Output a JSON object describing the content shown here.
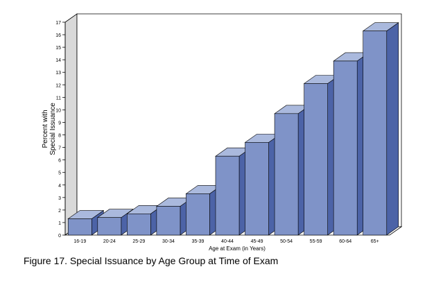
{
  "caption": "Figure 17. Special Issuance by Age Group at Time of Exam",
  "chart_data": {
    "type": "bar",
    "title": "",
    "xlabel": "Age at Exam (in Years)",
    "ylabel_lines": [
      "Percent with",
      "Special Issuance"
    ],
    "ylim": [
      0,
      17
    ],
    "yticks": [
      0,
      1,
      2,
      3,
      4,
      5,
      6,
      7,
      8,
      9,
      10,
      11,
      12,
      13,
      14,
      15,
      16,
      17
    ],
    "categories": [
      "16-19",
      "20-24",
      "25-29",
      "30-34",
      "35-39",
      "40-44",
      "45-49",
      "50-54",
      "55-59",
      "60-64",
      "65+"
    ],
    "values": [
      1.3,
      1.4,
      1.7,
      2.3,
      3.3,
      6.3,
      7.4,
      9.7,
      12.1,
      13.9,
      16.3
    ],
    "grid": false,
    "three_d": true,
    "colors": {
      "bar_front": "#7f93c8",
      "bar_top": "#aab9dd",
      "bar_side": "#4c63a7",
      "wall": "#d9d9d9",
      "outline": "#000000"
    }
  }
}
